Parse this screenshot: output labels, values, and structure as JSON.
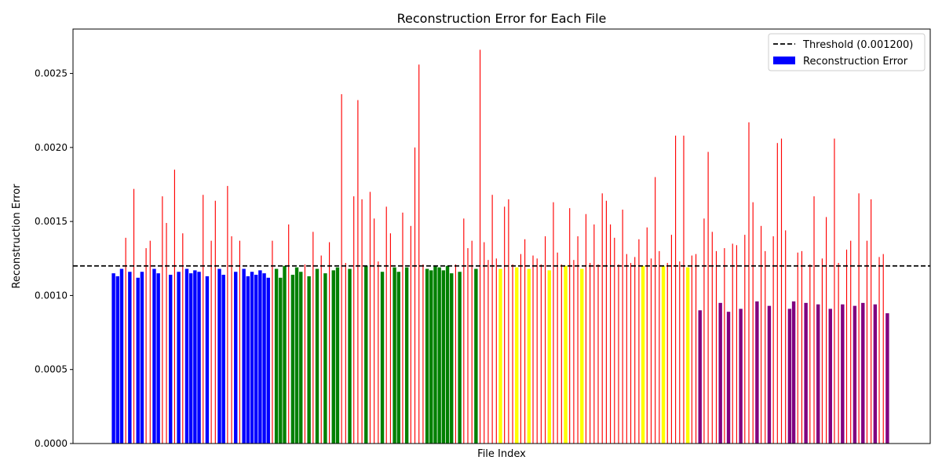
{
  "chart_data": {
    "type": "bar",
    "title": "Reconstruction Error for Each File",
    "xlabel": "File Index",
    "ylabel": "Reconstruction Error",
    "ylim": [
      0,
      0.0028
    ],
    "yticks": [
      "0.0000",
      "0.0005",
      "0.0010",
      "0.0015",
      "0.0020",
      "0.0025"
    ],
    "ytick_values": [
      0,
      0.0005,
      0.001,
      0.0015,
      0.002,
      0.0025
    ],
    "xticks_visible": false,
    "grid": false,
    "legend_position": "top-right",
    "threshold": {
      "value": 0.0012,
      "label": "Threshold (0.001200)",
      "style": "dashed",
      "color": "#000000"
    },
    "legend": [
      {
        "label": "Threshold (0.001200)",
        "kind": "dashed-line",
        "color": "#000000"
      },
      {
        "label": "Reconstruction Error",
        "kind": "patch",
        "color": "#0000ff"
      }
    ],
    "anomaly_color": "#ff0000",
    "groups": [
      {
        "color": "#0000ff",
        "values": [
          0.00115,
          0.00113,
          0.00118,
          0.00139,
          0.00116,
          0.00172,
          0.00112,
          0.00116,
          0.00132,
          0.00137,
          0.00118,
          0.00115,
          0.00167,
          0.00149,
          0.00114,
          0.00185,
          0.00116,
          0.00142,
          0.00118,
          0.00115,
          0.00117,
          0.00116,
          0.00168,
          0.00113,
          0.00137,
          0.00164,
          0.00118,
          0.00114,
          0.00174,
          0.0014,
          0.00116,
          0.00137,
          0.00118,
          0.00113,
          0.00116,
          0.00114,
          0.00117,
          0.00115,
          0.00112,
          0.00137
        ]
      },
      {
        "color": "#008000",
        "values": [
          0.00118,
          0.00112,
          0.0012,
          0.00148,
          0.00114,
          0.00119,
          0.00116,
          0.00121,
          0.00113,
          0.00143,
          0.00118,
          0.00127,
          0.00115,
          0.00136,
          0.00117,
          0.00119,
          0.00236,
          0.00122,
          0.00118,
          0.00167,
          0.00232,
          0.00165,
          0.0012,
          0.0017,
          0.00152,
          0.00123,
          0.00116,
          0.0016,
          0.00142,
          0.00119,
          0.00116,
          0.00156,
          0.00119,
          0.00147,
          0.002,
          0.00256,
          0.00121,
          0.00118,
          0.00117,
          0.0012,
          0.00119,
          0.00117,
          0.0012,
          0.00115,
          0.00121,
          0.00116,
          0.00152,
          0.00132,
          0.00137,
          0.00118,
          0.00266,
          0.00136
        ]
      },
      {
        "color": "#ffff00",
        "values": [
          0.00124,
          0.00168,
          0.00125,
          0.00118,
          0.0016,
          0.00165,
          0.00121,
          0.00119,
          0.00128,
          0.00138,
          0.00118,
          0.00127,
          0.00125,
          0.00121,
          0.0014,
          0.00117,
          0.00163,
          0.00129,
          0.00121,
          0.0012,
          0.00159,
          0.00124,
          0.0014,
          0.00118,
          0.00155,
          0.00122,
          0.00148,
          0.00121,
          0.00169,
          0.00164,
          0.00148,
          0.00139,
          0.00121,
          0.00158,
          0.00128,
          0.00122,
          0.00126,
          0.00138,
          0.0012,
          0.00146,
          0.00125,
          0.0018,
          0.0013,
          0.0012,
          0.00122,
          0.00141,
          0.00208,
          0.00123,
          0.00208,
          0.00119,
          0.00127,
          0.00128
        ]
      },
      {
        "color": "#800080",
        "values": [
          0.0009,
          0.00152,
          0.00197,
          0.00143,
          0.0013,
          0.00095,
          0.00132,
          0.00089,
          0.00135,
          0.00134,
          0.00091,
          0.00141,
          0.00217,
          0.00163,
          0.00096,
          0.00147,
          0.0013,
          0.00093,
          0.0014,
          0.00203,
          0.00206,
          0.00144,
          0.00091,
          0.00096,
          0.00129,
          0.0013,
          0.00095,
          0.00121,
          0.00167,
          0.00094,
          0.00125,
          0.00153,
          0.00091,
          0.00206,
          0.00122,
          0.00094,
          0.00131,
          0.00137,
          0.00093,
          0.00169,
          0.00095,
          0.00137,
          0.00165,
          0.00094,
          0.00126,
          0.00128,
          0.00088
        ]
      }
    ]
  }
}
